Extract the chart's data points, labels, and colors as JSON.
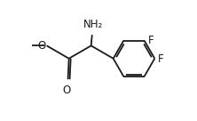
{
  "bg_color": "#ffffff",
  "line_color": "#1a1a1a",
  "line_width": 1.3,
  "text_color": "#1a1a1a",
  "font_size": 8.5,
  "figsize": [
    2.22,
    1.36
  ],
  "dpi": 100,
  "xlim": [
    0,
    10
  ],
  "ylim": [
    0,
    6
  ]
}
